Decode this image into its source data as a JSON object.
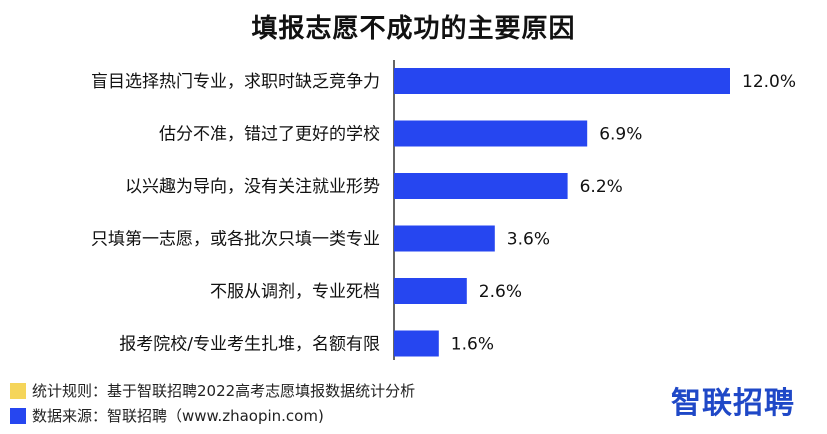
{
  "colors": {
    "bar": "#2646f0",
    "note_yellow": "#f5d55a",
    "note_blue": "#2646f0",
    "brand": "#1f48c7"
  },
  "chart_data": {
    "type": "bar",
    "orientation": "horizontal",
    "title": "填报志愿不成功的主要原因",
    "categories": [
      "盲目选择热门专业，求职时缺乏竞争力",
      "估分不准，错过了更好的学校",
      "以兴趣为导向，没有关注就业形势",
      "只填第一志愿，或各批次只填一类专业",
      "不服从调剂，专业死档",
      "报考院校/专业考生扎堆，名额有限"
    ],
    "values": [
      12.0,
      6.9,
      6.2,
      3.6,
      2.6,
      1.6
    ],
    "value_labels": [
      "12.0%",
      "6.9%",
      "6.2%",
      "3.6%",
      "2.6%",
      "1.6%"
    ],
    "xlim": [
      0,
      12.0
    ],
    "grid": false,
    "legend": "none"
  },
  "footer": {
    "rule": "统计规则：基于智联招聘2022高考志愿填报数据统计分析",
    "source": "数据来源：智联招聘（www.zhaopin.com)"
  },
  "brand": "智联招聘"
}
